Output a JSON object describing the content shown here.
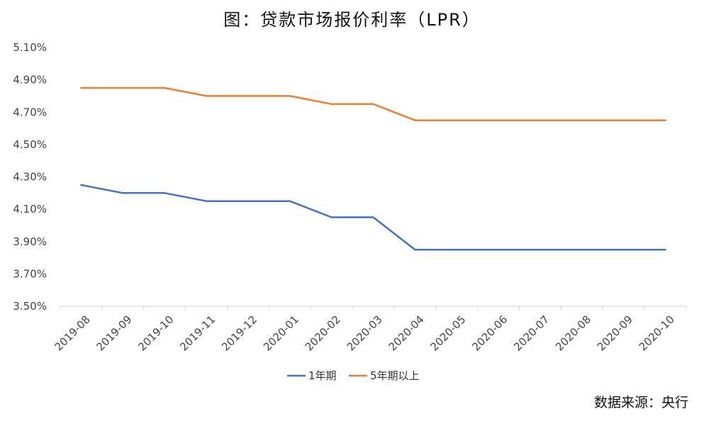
{
  "title": "图：贷款市场报价利率（LPR）",
  "source": "数据来源：央行",
  "chart_data": {
    "type": "line",
    "title": "图：贷款市场报价利率（LPR）",
    "xlabel": "",
    "ylabel": "",
    "categories": [
      "2019-08",
      "2019-09",
      "2019-10",
      "2019-11",
      "2019-12",
      "2020-01",
      "2020-02",
      "2020-03",
      "2020-04",
      "2020-05",
      "2020-06",
      "2020-07",
      "2020-08",
      "2020-09",
      "2020-10"
    ],
    "ylim": [
      3.5,
      5.1
    ],
    "yticks": [
      "3.50%",
      "3.70%",
      "3.90%",
      "4.10%",
      "4.30%",
      "4.50%",
      "4.70%",
      "4.90%",
      "5.10%"
    ],
    "ytick_values": [
      3.5,
      3.7,
      3.9,
      4.1,
      4.3,
      4.5,
      4.7,
      4.9,
      5.1
    ],
    "grid": false,
    "legend_position": "bottom",
    "series": [
      {
        "name": "1年期",
        "color": "#4472C4",
        "values": [
          4.25,
          4.2,
          4.2,
          4.15,
          4.15,
          4.15,
          4.05,
          4.05,
          3.85,
          3.85,
          3.85,
          3.85,
          3.85,
          3.85,
          3.85
        ]
      },
      {
        "name": "5年期以上",
        "color": "#ED7D31",
        "values": [
          4.85,
          4.85,
          4.85,
          4.8,
          4.8,
          4.8,
          4.75,
          4.75,
          4.65,
          4.65,
          4.65,
          4.65,
          4.65,
          4.65,
          4.65
        ]
      }
    ]
  }
}
